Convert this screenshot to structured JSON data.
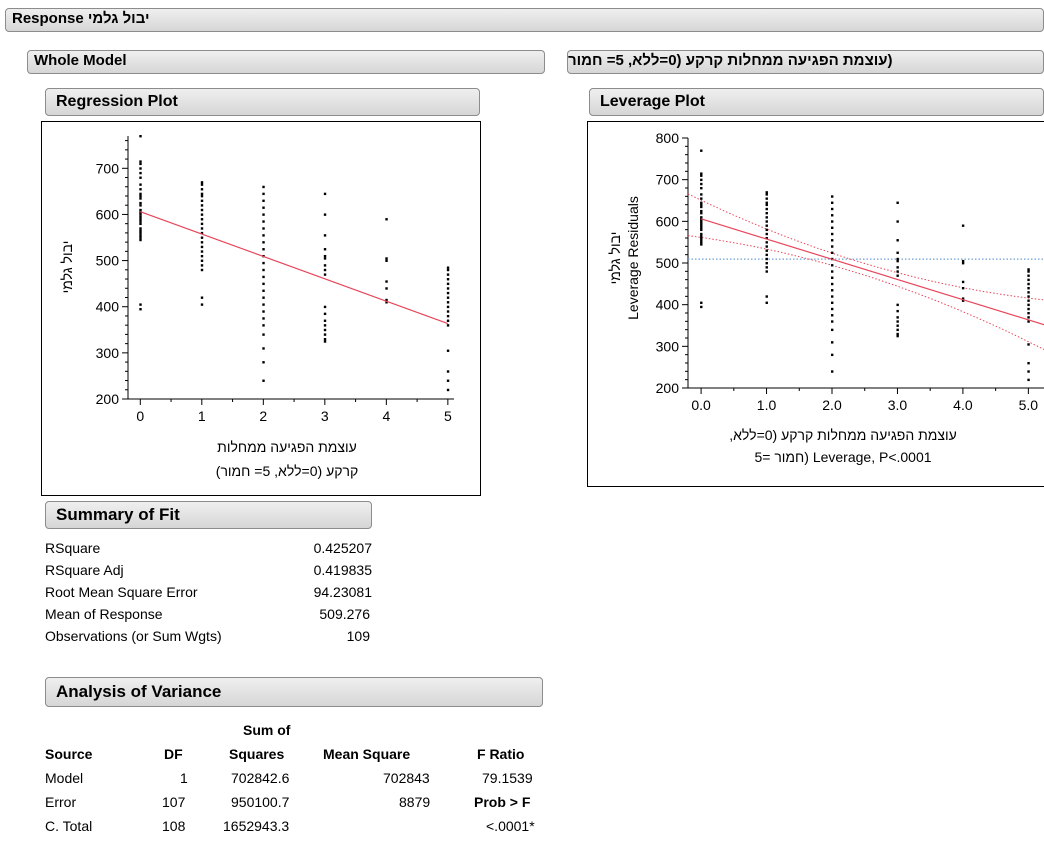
{
  "response_title": "Response יבול גלמי",
  "whole_model_title": "Whole Model",
  "effect_title": "(עוצמת הפגיעה ממחלות קרקע (0=ללא, 5= חמור",
  "regression": {
    "title": "Regression Plot",
    "ylabel": "יבול גלמי",
    "xlabel_line1": "עוצמת הפגיעה ממחלות",
    "xlabel_line2": "קרקע (0=ללא, 5= חמור)",
    "x_ticks": [
      "0",
      "1",
      "2",
      "3",
      "4",
      "5"
    ],
    "y_ticks": [
      "200",
      "300",
      "400",
      "500",
      "600",
      "700"
    ]
  },
  "leverage": {
    "title": "Leverage Plot",
    "ylabel_line1": "יבול גלמי",
    "ylabel_line2": "Leverage Residuals",
    "xlabel_line1": "עוצמת הפגיעה ממחלות קרקע (0=ללא,",
    "xlabel_line2": "5= חמור) Leverage, P<.0001",
    "x_ticks": [
      "0.0",
      "1.0",
      "2.0",
      "3.0",
      "4.0",
      "5.0"
    ],
    "y_ticks": [
      "200",
      "300",
      "400",
      "500",
      "600",
      "700",
      "800"
    ]
  },
  "summary_of_fit": {
    "title": "Summary of Fit",
    "rows": [
      {
        "label": "RSquare",
        "value": "0.425207"
      },
      {
        "label": "RSquare Adj",
        "value": "0.419835"
      },
      {
        "label": "Root Mean Square Error",
        "value": "94.23081"
      },
      {
        "label": "Mean of Response",
        "value": "509.276"
      },
      {
        "label": "Observations (or Sum Wgts)",
        "value": "109"
      }
    ]
  },
  "anova": {
    "title": "Analysis of Variance",
    "header_top": "Sum of",
    "headers": [
      "Source",
      "DF",
      "Squares",
      "Mean Square",
      "F Ratio"
    ],
    "rows": [
      [
        "Model",
        "1",
        "702842.6",
        "702843",
        "79.1539"
      ],
      [
        "Error",
        "107",
        "950100.7",
        "8879",
        "Prob > F"
      ],
      [
        "C. Total",
        "108",
        "1652943.3",
        "",
        "<.0001*"
      ]
    ]
  },
  "colors": {
    "fit_line": "#e8455a",
    "mean_line": "#6f9fd6",
    "header_bg": "#dedede"
  },
  "chart_data": [
    {
      "type": "scatter",
      "title": "Regression Plot",
      "xlabel": "עוצמת הפגיעה ממחלות קרקע (0=ללא, 5= חמור)",
      "ylabel": "יבול גלמי",
      "xlim": [
        -0.2,
        5.1
      ],
      "ylim": [
        200,
        770
      ],
      "fit_line": {
        "intercept": 606,
        "slope": -48.5
      },
      "points": {
        "0": [
          770,
          715,
          710,
          700,
          690,
          680,
          665,
          655,
          645,
          640,
          635,
          625,
          620,
          610,
          605,
          600,
          595,
          590,
          585,
          580,
          570,
          565,
          560,
          555,
          550,
          545,
          405,
          395
        ],
        "1": [
          670,
          665,
          655,
          645,
          640,
          630,
          620,
          610,
          600,
          590,
          580,
          570,
          560,
          550,
          540,
          530,
          520,
          510,
          500,
          490,
          480,
          420,
          405
        ],
        "2": [
          660,
          645,
          630,
          615,
          600,
          585,
          570,
          555,
          540,
          525,
          510,
          495,
          480,
          465,
          450,
          435,
          420,
          405,
          390,
          375,
          360,
          340,
          310,
          280,
          240
        ],
        "3": [
          645,
          600,
          555,
          525,
          510,
          505,
          490,
          480,
          470,
          400,
          385,
          370,
          360,
          350,
          340,
          330,
          325
        ],
        "4": [
          590,
          505,
          500,
          455,
          440,
          415,
          410
        ],
        "5": [
          485,
          480,
          470,
          460,
          450,
          440,
          430,
          420,
          410,
          400,
          390,
          380,
          370,
          360,
          305,
          260,
          240,
          220
        ]
      }
    },
    {
      "type": "scatter",
      "title": "Leverage Plot",
      "xlabel": "עוצמת הפגיעה ממחלות קרקע (0=ללא, 5= חמור) Leverage, P<.0001",
      "ylabel": "יבול גלמי Leverage Residuals",
      "xlim": [
        -0.2,
        5.3
      ],
      "ylim": [
        200,
        800
      ],
      "mean_line": 509.276,
      "fit_line": {
        "intercept": 606,
        "slope": -48.5
      },
      "confidence_band": true
    }
  ]
}
